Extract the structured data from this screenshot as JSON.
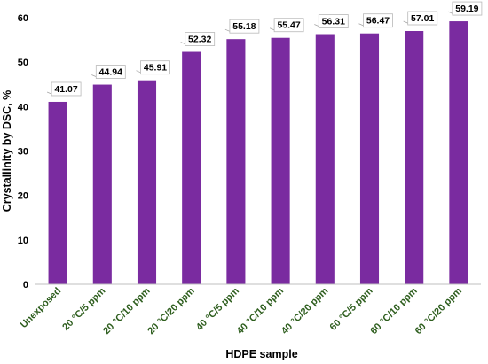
{
  "chart_data": {
    "type": "bar",
    "categories": [
      "Unexposed",
      "20 °C/5 ppm",
      "20 °C/10 ppm",
      "20 °C/20 ppm",
      "40 °C/5 ppm",
      "40 °C/10 ppm",
      "40 °C/20 ppm",
      "60 °C/5 ppm",
      "60 °C/10 ppm",
      "60 °C/20 ppm"
    ],
    "values": [
      41.07,
      44.94,
      45.91,
      52.32,
      55.18,
      55.47,
      56.31,
      56.47,
      57.01,
      59.19
    ],
    "data_labels": [
      "41.07",
      "44.94",
      "45.91",
      "52.32",
      "55.18",
      "55.47",
      "56.31",
      "56.47",
      "57.01",
      "59.19"
    ],
    "xlabel": "HDPE sample",
    "ylabel": "Crystallinity by DSC, %",
    "ylim": [
      0,
      60
    ],
    "yticks": [
      0,
      10,
      20,
      30,
      40,
      50,
      60
    ],
    "grid": false,
    "colors": {
      "bar": "#7a2ba0",
      "category_label": "#2e5e1e",
      "text": "#000000"
    }
  }
}
